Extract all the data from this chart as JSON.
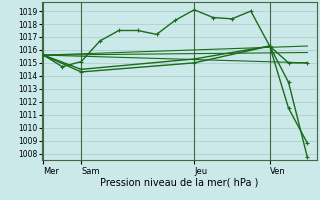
{
  "bg_color": "#cbe9e9",
  "grid_color": "#aacccc",
  "line_color": "#1a6b1a",
  "x_ticks_labels": [
    "Mer",
    "Sam",
    "Jeu",
    "Ven"
  ],
  "x_ticks_pos": [
    0,
    2,
    8,
    12
  ],
  "ylim": [
    1007.5,
    1019.7
  ],
  "yticks": [
    1008,
    1009,
    1010,
    1011,
    1012,
    1013,
    1014,
    1015,
    1016,
    1017,
    1018,
    1019
  ],
  "xlabel": "Pression niveau de la mer( hPa )",
  "xlabel_fontsize": 7,
  "series": [
    {
      "x": [
        0,
        1,
        2,
        3,
        4,
        5,
        6,
        7,
        8,
        9,
        10,
        11,
        12,
        13,
        14
      ],
      "y": [
        1015.6,
        1014.7,
        1015.1,
        1016.7,
        1017.5,
        1017.5,
        1017.2,
        1018.3,
        1019.1,
        1018.5,
        1018.4,
        1019.0,
        1016.3,
        1015.0,
        1015.0
      ],
      "marker": true,
      "lw": 1.0
    },
    {
      "x": [
        0,
        14
      ],
      "y": [
        1015.6,
        1015.0
      ],
      "marker": false,
      "lw": 0.8
    },
    {
      "x": [
        0,
        14
      ],
      "y": [
        1015.6,
        1015.8
      ],
      "marker": false,
      "lw": 0.8
    },
    {
      "x": [
        0,
        14
      ],
      "y": [
        1015.6,
        1016.3
      ],
      "marker": false,
      "lw": 0.8
    },
    {
      "x": [
        0,
        2,
        8,
        12,
        13,
        14
      ],
      "y": [
        1015.6,
        1014.3,
        1015.0,
        1016.3,
        1013.5,
        1007.7
      ],
      "marker": true,
      "lw": 1.0
    },
    {
      "x": [
        0,
        2,
        8,
        12,
        13,
        14
      ],
      "y": [
        1015.6,
        1014.5,
        1015.3,
        1016.3,
        1011.5,
        1008.8
      ],
      "marker": true,
      "lw": 1.0
    }
  ],
  "vlines": [
    0,
    2,
    8,
    12
  ],
  "vline_color": "#446644",
  "xlim": [
    -0.1,
    14.5
  ]
}
